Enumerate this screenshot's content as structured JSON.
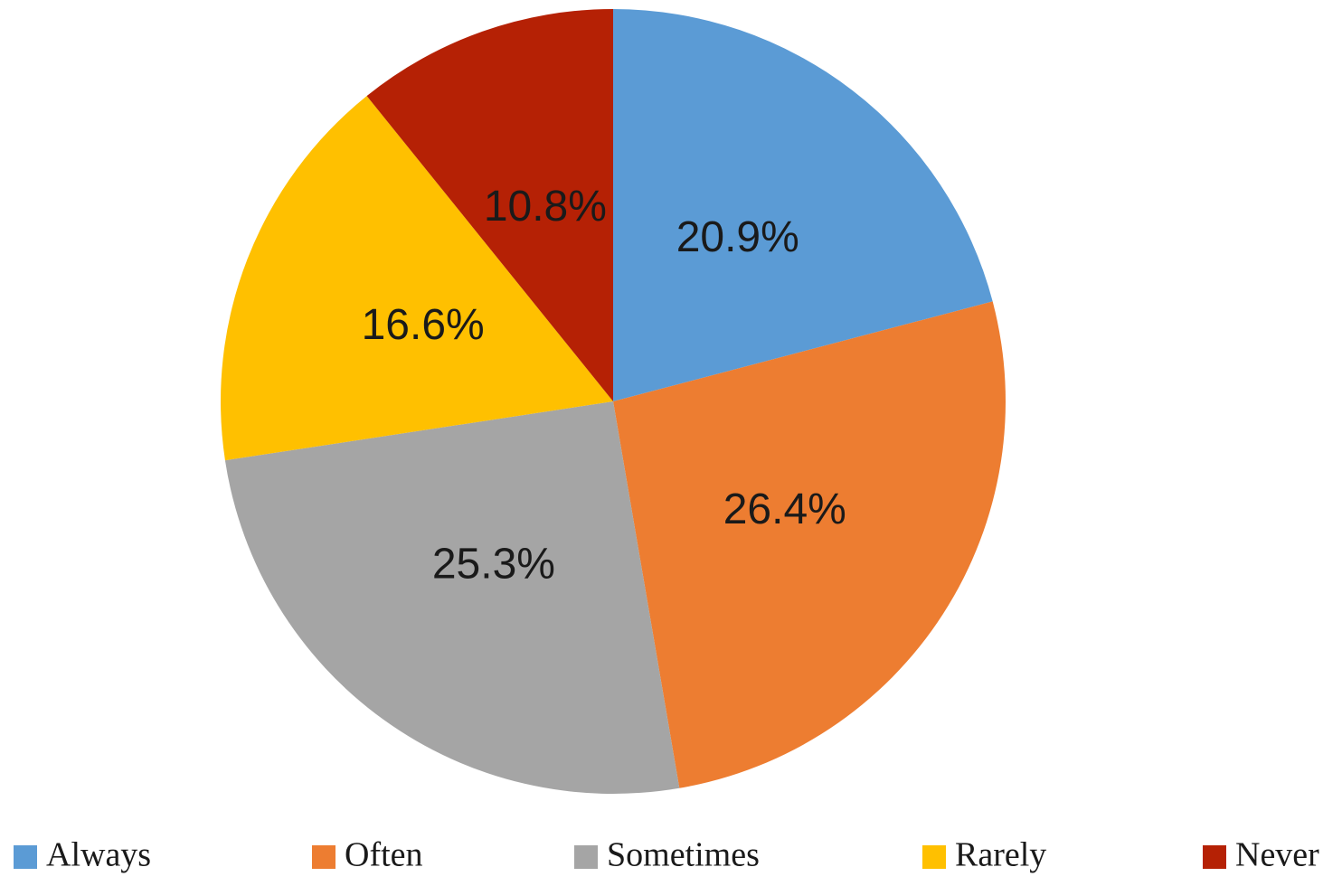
{
  "chart_data": {
    "type": "pie",
    "categories": [
      "Always",
      "Often",
      "Sometimes",
      "Rarely",
      "Never"
    ],
    "values": [
      20.9,
      26.4,
      25.3,
      16.6,
      10.8
    ],
    "value_labels": [
      "20.9%",
      "26.4%",
      "25.3%",
      "16.6%",
      "10.8%"
    ],
    "colors": [
      "#5b9bd5",
      "#ed7d31",
      "#a5a5a5",
      "#ffc000",
      "#b52105"
    ],
    "legend": "bottom"
  }
}
